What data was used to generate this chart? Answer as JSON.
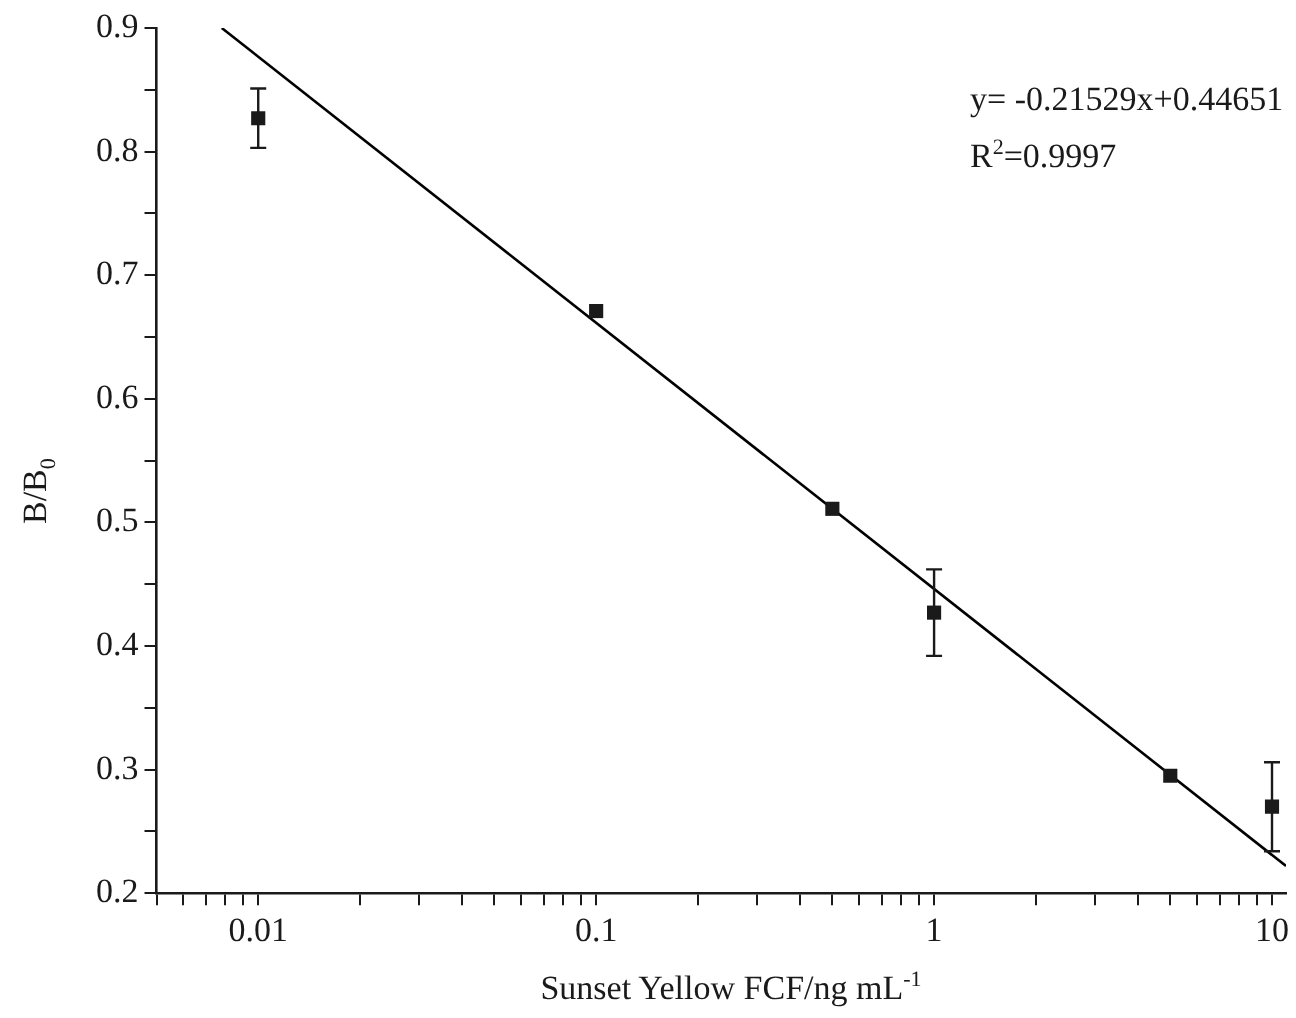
{
  "chart_data": {
    "type": "scatter",
    "xlabel": "Sunset Yellow FCF/ng mL$^{-1}$",
    "ylabel": "B/B$_{0}$",
    "annotations": [
      "y= -0.21529x+0.44651",
      "R$^{2}$=0.9997"
    ],
    "log": "x",
    "grid": false,
    "xlim": [
      0.005,
      11
    ],
    "xticks": [
      {
        "value": 0.005,
        "label": null
      },
      {
        "value": 0.006,
        "label": null
      },
      {
        "value": 0.007,
        "label": null
      },
      {
        "value": 0.008,
        "label": null
      },
      {
        "value": 0.009,
        "label": null
      },
      0.01,
      {
        "value": 0.02,
        "label": null
      },
      {
        "value": 0.03,
        "label": null
      },
      {
        "value": 0.04,
        "label": null
      },
      {
        "value": 0.05,
        "label": null
      },
      {
        "value": 0.06,
        "label": null
      },
      {
        "value": 0.07,
        "label": null
      },
      {
        "value": 0.08,
        "label": null
      },
      {
        "value": 0.09,
        "label": null
      },
      0.1,
      {
        "value": 0.2,
        "label": null
      },
      {
        "value": 0.3,
        "label": null
      },
      {
        "value": 0.4,
        "label": null
      },
      {
        "value": 0.5,
        "label": null
      },
      {
        "value": 0.6,
        "label": null
      },
      {
        "value": 0.7,
        "label": null
      },
      {
        "value": 0.8,
        "label": null
      },
      {
        "value": 0.9,
        "label": null
      },
      1,
      {
        "value": 2,
        "label": null
      },
      {
        "value": 3,
        "label": null
      },
      {
        "value": 4,
        "label": null
      },
      {
        "value": 5,
        "label": null
      },
      {
        "value": 6,
        "label": null
      },
      {
        "value": 7,
        "label": null
      },
      {
        "value": 8,
        "label": null
      },
      {
        "value": 9,
        "label": null
      },
      10
    ],
    "ylim": [
      0.2,
      0.9
    ],
    "yticks": [
      0.2,
      {
        "value": 0.25,
        "label": null
      },
      0.3,
      {
        "value": 0.35,
        "label": null
      },
      0.4,
      {
        "value": 0.45,
        "label": null
      },
      0.5,
      {
        "value": 0.55,
        "label": null
      },
      0.6,
      {
        "value": 0.65,
        "label": null
      },
      0.7,
      {
        "value": 0.75,
        "label": null
      },
      0.8,
      {
        "value": 0.85,
        "label": null
      },
      0.9
    ],
    "series": [
      {
        "type": "scatter",
        "color": "#1a1a1a",
        "marker": "square",
        "x": [
          0.01,
          0.1,
          0.5,
          1,
          5,
          10
        ],
        "values": [
          0.827,
          0.671,
          0.511,
          0.427,
          0.295,
          0.27
        ],
        "errors": [
          0.024,
          null,
          null,
          0.035,
          null,
          0.036
        ]
      },
      {
        "type": "line",
        "color": "#000000",
        "marker": "none",
        "x": [
          0.0078,
          11
        ],
        "values": [
          0.9,
          0.222
        ]
      }
    ]
  }
}
